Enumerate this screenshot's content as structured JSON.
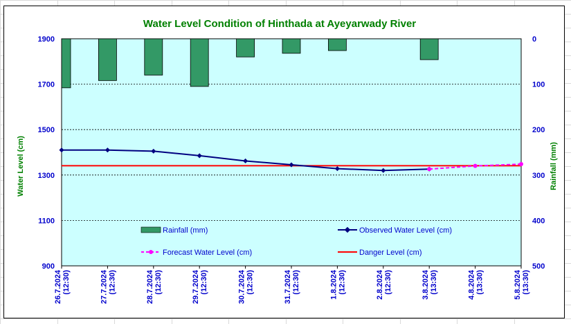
{
  "chart_data": {
    "type": "bar+line",
    "title": "Water Level Condition of Hinthada at Ayeyarwady River",
    "ylabel_left": "Water Level (cm)",
    "ylabel_right": "Rainfall (mm)",
    "ylim_left": [
      900,
      1900
    ],
    "yticks_left": [
      "1900",
      "1700",
      "1500",
      "1300",
      "1100",
      "900"
    ],
    "ylim_right": [
      0,
      500
    ],
    "yticks_right": [
      "0",
      "100",
      "200",
      "300",
      "400",
      "500"
    ],
    "right_axis_reversed": true,
    "grid": "horizontal dashed",
    "categories": [
      [
        "26.7.2024",
        "(12:30)"
      ],
      [
        "27.7.2024",
        "(12:30)"
      ],
      [
        "28.7.2024",
        "(12:30)"
      ],
      [
        "29.7.2024",
        "(12:30)"
      ],
      [
        "30.7.2024",
        "(12:30)"
      ],
      [
        "31.7.2024",
        "(12:30)"
      ],
      [
        "1.8.2024",
        "(12:30)"
      ],
      [
        "2.8.2024",
        "(12:30)"
      ],
      [
        "3.8.2024",
        "(13:30)"
      ],
      [
        "4.8.2024",
        "(13:30)"
      ],
      [
        "5.8.2024",
        "(13:30)"
      ]
    ],
    "series": [
      {
        "name": "Rainfall (mm)",
        "type": "bar",
        "axis": "right",
        "values": [
          108,
          92,
          80,
          105,
          40,
          32,
          26,
          0,
          46,
          0,
          0
        ]
      },
      {
        "name": "Observed Water Level (cm)",
        "type": "line",
        "axis": "left",
        "values": [
          1410,
          1410,
          1405,
          1385,
          1362,
          1345,
          1328,
          1320,
          1326,
          null,
          null
        ]
      },
      {
        "name": "Forecast Water Level (cm)",
        "type": "line-dashed",
        "axis": "left",
        "values": [
          null,
          null,
          null,
          null,
          null,
          null,
          null,
          null,
          1326,
          1340,
          1348
        ]
      },
      {
        "name": "Danger Level (cm)",
        "type": "hline",
        "axis": "left",
        "value": 1341
      }
    ],
    "legend_placement": "inside-bottom",
    "colors": {
      "plot_bg": "#ccffff",
      "rainfall": "#339966",
      "observed": "#000080",
      "forecast": "#ff00ff",
      "danger": "#ff0000",
      "title": "#008000",
      "axis_label": "#008000",
      "tick_label": "#0000cc"
    }
  }
}
